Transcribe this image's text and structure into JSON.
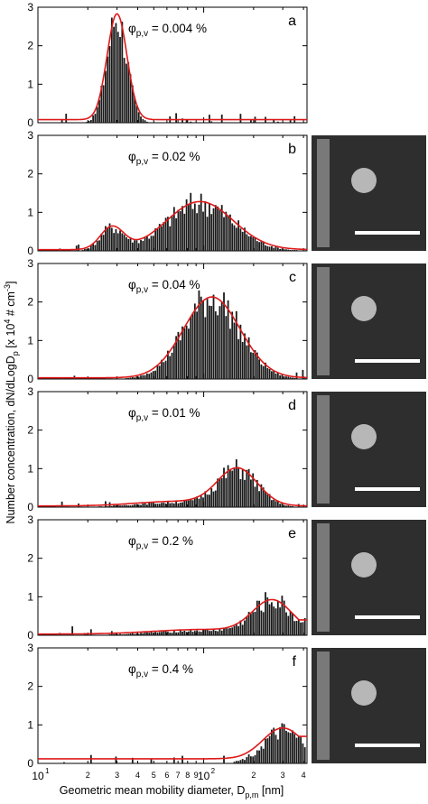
{
  "ylabel": "Number concentration, dN/dLogD",
  "ylabel_sub": "p",
  "ylabel_unit_pre": "[x 10",
  "ylabel_unit_exp": "4",
  "ylabel_unit_mid": "# cm",
  "ylabel_unit_exp2": "-3",
  "ylabel_unit_post": "]",
  "xlabel": "Geometric mean mobility diameter, D",
  "xlabel_sub": "p,m",
  "xlabel_unit": "[nm]",
  "colors": {
    "bars": "#1a1a1a",
    "fit": "#dd1a1a",
    "sem_bg": "#2e2e2e",
    "scale_bar": "#ffffff"
  },
  "chart_data": [
    {
      "panel": "a",
      "type": "bar",
      "phi_sym": "φ",
      "phi_sub": "p,v",
      "phi_value": "= 0.004 %",
      "xscale": "log",
      "xlim": [
        10,
        420
      ],
      "ylim": [
        0,
        3
      ],
      "yticks": [
        "0",
        "1",
        "2",
        "3"
      ],
      "xticks_major": [
        "10",
        "10"
      ],
      "xticks_major_exp": [
        "1",
        "2"
      ],
      "xticks_minor": [
        "2",
        "3",
        "4",
        "5",
        "6",
        "7",
        "8",
        "9",
        "2",
        "3",
        "4"
      ],
      "fit": {
        "peaks": [
          {
            "d": 30,
            "amp": 2.75,
            "sigma": 0.06
          }
        ],
        "base": 0.08
      },
      "bars": {
        "noise": 0.3
      },
      "sem": false
    },
    {
      "panel": "b",
      "type": "bar",
      "phi_sym": "φ",
      "phi_sub": "p,v",
      "phi_value": "= 0.02 %",
      "xscale": "log",
      "xlim": [
        10,
        420
      ],
      "ylim": [
        0,
        3
      ],
      "yticks": [
        "0",
        "1",
        "2",
        "3"
      ],
      "xticks_major": [
        "10",
        "10"
      ],
      "xticks_major_exp": [
        "1",
        "2"
      ],
      "xticks_minor": [
        "2",
        "3",
        "4",
        "5",
        "6",
        "7",
        "8",
        "9",
        "2",
        "3",
        "4"
      ],
      "fit": {
        "peaks": [
          {
            "d": 28,
            "amp": 0.58,
            "sigma": 0.07
          },
          {
            "d": 95,
            "amp": 1.25,
            "sigma": 0.2
          }
        ],
        "base": 0.03
      },
      "bars": {
        "noise": 0.35
      },
      "sem": true
    },
    {
      "panel": "c",
      "type": "bar",
      "phi_sym": "φ",
      "phi_sub": "p,v",
      "phi_value": "= 0.04 %",
      "xscale": "log",
      "xlim": [
        10,
        420
      ],
      "ylim": [
        0,
        3
      ],
      "yticks": [
        "0",
        "1",
        "2",
        "3"
      ],
      "xticks_major": [
        "10",
        "10"
      ],
      "xticks_major_exp": [
        "1",
        "2"
      ],
      "xticks_minor": [
        "2",
        "3",
        "4",
        "5",
        "6",
        "7",
        "8",
        "9",
        "2",
        "3",
        "4"
      ],
      "fit": {
        "peaks": [
          {
            "d": 112,
            "amp": 2.1,
            "sigma": 0.17
          }
        ],
        "base": 0.03
      },
      "bars": {
        "noise": 0.3
      },
      "sem": true
    },
    {
      "panel": "d",
      "type": "bar",
      "phi_sym": "φ",
      "phi_sub": "p,v",
      "phi_value": "= 0.01 %",
      "xscale": "log",
      "xlim": [
        10,
        420
      ],
      "ylim": [
        0,
        3
      ],
      "yticks": [
        "0",
        "1",
        "2",
        "3"
      ],
      "xticks_major": [
        "10",
        "10"
      ],
      "xticks_major_exp": [
        "1",
        "2"
      ],
      "xticks_minor": [
        "2",
        "3",
        "4",
        "5",
        "6",
        "7",
        "8",
        "9",
        "2",
        "3",
        "4"
      ],
      "fit": {
        "peaks": [
          {
            "d": 70,
            "amp": 0.12,
            "sigma": 0.25
          },
          {
            "d": 160,
            "amp": 0.95,
            "sigma": 0.12
          }
        ],
        "base": 0.03
      },
      "bars": {
        "noise": 0.35
      },
      "sem": true
    },
    {
      "panel": "e",
      "type": "bar",
      "phi_sym": "φ",
      "phi_sub": "p,v",
      "phi_value": "= 0.2 %",
      "xscale": "log",
      "xlim": [
        10,
        420
      ],
      "ylim": [
        0,
        3
      ],
      "yticks": [
        "0",
        "1",
        "2",
        "3"
      ],
      "xticks_major": [
        "10",
        "10"
      ],
      "xticks_major_exp": [
        "1",
        "2"
      ],
      "xticks_minor": [
        "2",
        "3",
        "4",
        "5",
        "6",
        "7",
        "8",
        "9",
        "2",
        "3",
        "4"
      ],
      "fit": {
        "peaks": [
          {
            "d": 100,
            "amp": 0.12,
            "sigma": 0.3
          },
          {
            "d": 260,
            "amp": 0.85,
            "sigma": 0.12
          }
        ],
        "base": 0.03,
        "tail": 0.4
      },
      "bars": {
        "noise": 0.4
      },
      "sem": true
    },
    {
      "panel": "f",
      "type": "bar",
      "phi_sym": "φ",
      "phi_sub": "p,v",
      "phi_value": "= 0.4 %",
      "xscale": "log",
      "xlim": [
        10,
        420
      ],
      "ylim": [
        0,
        3
      ],
      "yticks": [
        "0",
        "1",
        "2",
        "3"
      ],
      "xticks_major": [
        "10",
        "10"
      ],
      "xticks_major_exp": [
        "1",
        "2"
      ],
      "xticks_minor": [
        "2",
        "3",
        "4",
        "5",
        "6",
        "7",
        "8",
        "9",
        "2",
        "3",
        "4"
      ],
      "fit": {
        "peaks": [
          {
            "d": 300,
            "amp": 0.8,
            "sigma": 0.12
          }
        ],
        "base": 0.12,
        "tail": 0.7
      },
      "bars": {
        "noise": 0.4
      },
      "sem": true
    }
  ]
}
